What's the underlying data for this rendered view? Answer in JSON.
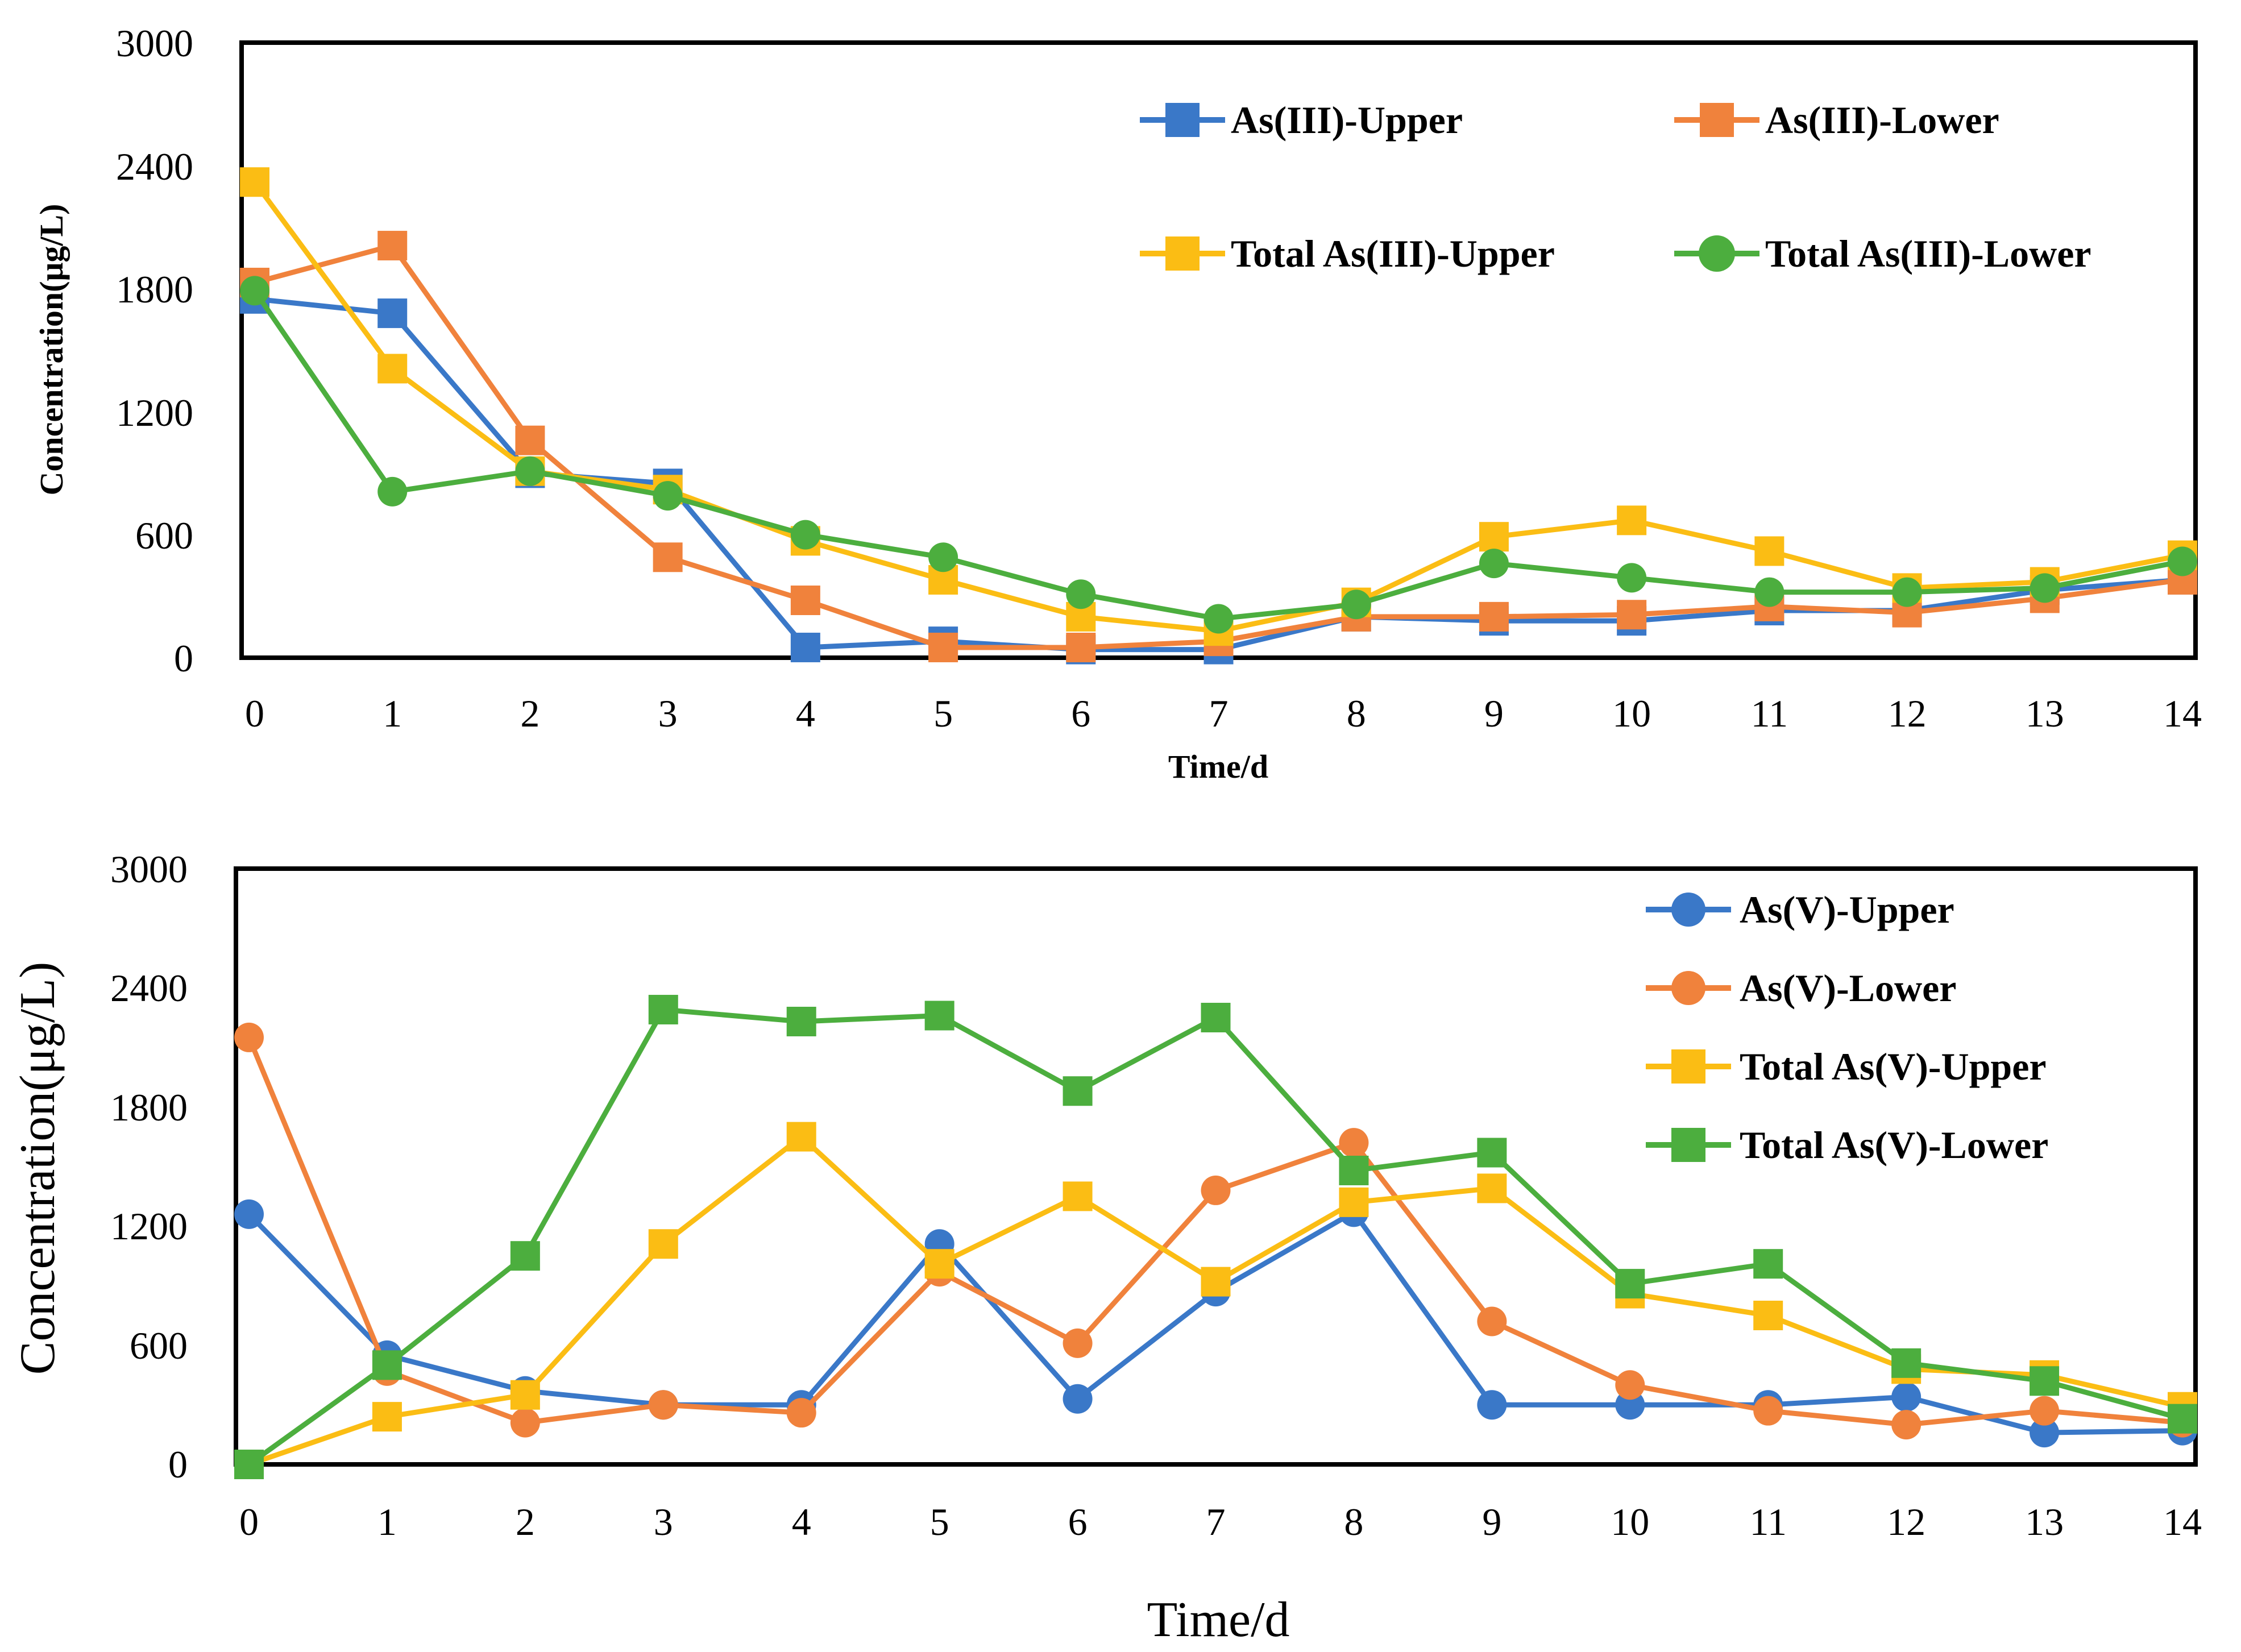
{
  "chart_data": [
    {
      "type": "line",
      "x": [
        0,
        1,
        2,
        3,
        4,
        5,
        6,
        7,
        8,
        9,
        10,
        11,
        12,
        13,
        14
      ],
      "xlabel": "Time/d",
      "ylabel": "Concentration(μg/L)",
      "ylim": [
        0,
        3000
      ],
      "xlim": [
        0,
        14
      ],
      "yticks": [
        "0",
        "600",
        "1200",
        "1800",
        "2400",
        "3000"
      ],
      "xticks": [
        "0",
        "1",
        "2",
        "3",
        "4",
        "5",
        "6",
        "7",
        "8",
        "9",
        "10",
        "11",
        "12",
        "13",
        "14"
      ],
      "legend_position": "top-right, two columns",
      "series": [
        {
          "name": "As(III)-Upper",
          "color": "#3a78c8",
          "marker": "square",
          "values": [
            1750,
            1680,
            900,
            850,
            50,
            80,
            40,
            40,
            200,
            180,
            180,
            230,
            230,
            330,
            380
          ]
        },
        {
          "name": "As(III)-Lower",
          "color": "#f0823c",
          "marker": "square",
          "values": [
            1830,
            2010,
            1060,
            490,
            280,
            50,
            50,
            80,
            200,
            200,
            210,
            250,
            220,
            290,
            380
          ]
        },
        {
          "name": "Total As(III)-Upper",
          "color": "#fbbd14",
          "marker": "square",
          "values": [
            2320,
            1410,
            910,
            820,
            570,
            380,
            200,
            130,
            270,
            590,
            670,
            520,
            340,
            370,
            500
          ]
        },
        {
          "name": "Total As(III)-Lower",
          "color": "#4cae3e",
          "marker": "circle",
          "values": [
            1790,
            810,
            910,
            790,
            600,
            490,
            310,
            190,
            260,
            460,
            390,
            320,
            320,
            340,
            470
          ]
        }
      ]
    },
    {
      "type": "line",
      "x": [
        0,
        1,
        2,
        3,
        4,
        5,
        6,
        7,
        8,
        9,
        10,
        11,
        12,
        13,
        14
      ],
      "xlabel": "Time/d",
      "ylabel": "Concentration(μg/L)",
      "ylim": [
        0,
        3000
      ],
      "xlim": [
        0,
        14
      ],
      "yticks": [
        "0",
        "600",
        "1200",
        "1800",
        "2400",
        "3000"
      ],
      "xticks": [
        "0",
        "1",
        "2",
        "3",
        "4",
        "5",
        "6",
        "7",
        "8",
        "9",
        "10",
        "11",
        "12",
        "13",
        "14"
      ],
      "legend_position": "top-right, one column",
      "series": [
        {
          "name": "As(V)-Upper",
          "color": "#3a78c8",
          "marker": "circle",
          "values": [
            1260,
            550,
            370,
            300,
            300,
            1110,
            330,
            870,
            1270,
            300,
            300,
            300,
            340,
            160,
            170
          ]
        },
        {
          "name": "As(V)-Lower",
          "color": "#f0823c",
          "marker": "circle",
          "values": [
            2150,
            470,
            210,
            300,
            260,
            970,
            610,
            1380,
            1620,
            720,
            400,
            270,
            200,
            270,
            210
          ]
        },
        {
          "name": "Total As(V)-Upper",
          "color": "#fbbd14",
          "marker": "square",
          "values": [
            0,
            240,
            350,
            1110,
            1650,
            1010,
            1350,
            920,
            1320,
            1390,
            860,
            750,
            480,
            450,
            290
          ]
        },
        {
          "name": "Total As(V)-Lower",
          "color": "#4cae3e",
          "marker": "square",
          "values": [
            0,
            500,
            1050,
            2290,
            2230,
            2260,
            1880,
            2250,
            1480,
            1570,
            910,
            1010,
            510,
            420,
            230
          ]
        }
      ]
    }
  ]
}
